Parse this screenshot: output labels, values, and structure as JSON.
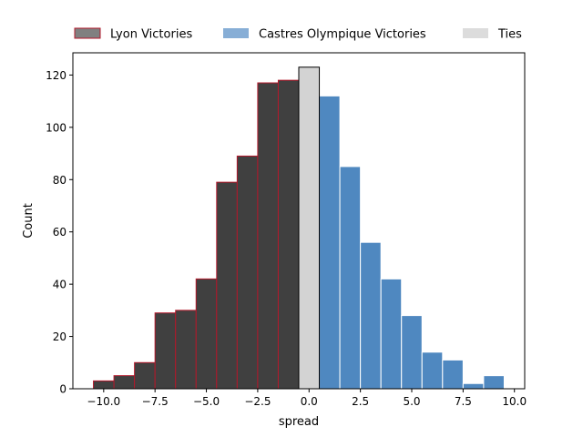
{
  "chart_data": {
    "type": "bar",
    "xlabel": "spread",
    "ylabel": "Count",
    "xlim": [
      -11.5,
      10.5
    ],
    "ylim": [
      0,
      128.5
    ],
    "xticks": [
      -10.0,
      -7.5,
      -5.0,
      -2.5,
      0.0,
      2.5,
      5.0,
      7.5,
      10.0
    ],
    "xtick_labels": [
      "−10.0",
      "−7.5",
      "−5.0",
      "−2.5",
      "0.0",
      "2.5",
      "5.0",
      "7.5",
      "10.0"
    ],
    "yticks": [
      0,
      20,
      40,
      60,
      80,
      100,
      120
    ],
    "ytick_labels": [
      "0",
      "20",
      "40",
      "60",
      "80",
      "100",
      "120"
    ],
    "grid": false,
    "legend_position": "top",
    "series": [
      {
        "name": "Lyon Victories",
        "fill": "#404040",
        "edge": "#b2182b",
        "legend_fill": "#808080",
        "bins": [
          {
            "x0": -10.5,
            "x1": -9.5,
            "count": 3
          },
          {
            "x0": -9.5,
            "x1": -8.5,
            "count": 5
          },
          {
            "x0": -8.5,
            "x1": -7.5,
            "count": 10
          },
          {
            "x0": -7.5,
            "x1": -6.5,
            "count": 29
          },
          {
            "x0": -6.5,
            "x1": -5.5,
            "count": 30
          },
          {
            "x0": -5.5,
            "x1": -4.5,
            "count": 42
          },
          {
            "x0": -4.5,
            "x1": -3.5,
            "count": 79
          },
          {
            "x0": -3.5,
            "x1": -2.5,
            "count": 89
          },
          {
            "x0": -2.5,
            "x1": -1.5,
            "count": 117
          },
          {
            "x0": -1.5,
            "x1": -0.5,
            "count": 118
          }
        ]
      },
      {
        "name": "Castres Olympique Victories",
        "fill": "#4f88c0",
        "edge": "#ffffff",
        "legend_fill": "#87aed6",
        "bins": [
          {
            "x0": 0.5,
            "x1": 1.5,
            "count": 112
          },
          {
            "x0": 1.5,
            "x1": 2.5,
            "count": 85
          },
          {
            "x0": 2.5,
            "x1": 3.5,
            "count": 56
          },
          {
            "x0": 3.5,
            "x1": 4.5,
            "count": 42
          },
          {
            "x0": 4.5,
            "x1": 5.5,
            "count": 28
          },
          {
            "x0": 5.5,
            "x1": 6.5,
            "count": 14
          },
          {
            "x0": 6.5,
            "x1": 7.5,
            "count": 11
          },
          {
            "x0": 7.5,
            "x1": 8.5,
            "count": 2
          },
          {
            "x0": 8.5,
            "x1": 9.5,
            "count": 5
          }
        ]
      },
      {
        "name": "Ties",
        "fill": "#d3d3d3",
        "edge": "#000000",
        "legend_fill": "#dcdcdc",
        "bins": [
          {
            "x0": -0.5,
            "x1": 0.5,
            "count": 123
          }
        ]
      }
    ]
  }
}
